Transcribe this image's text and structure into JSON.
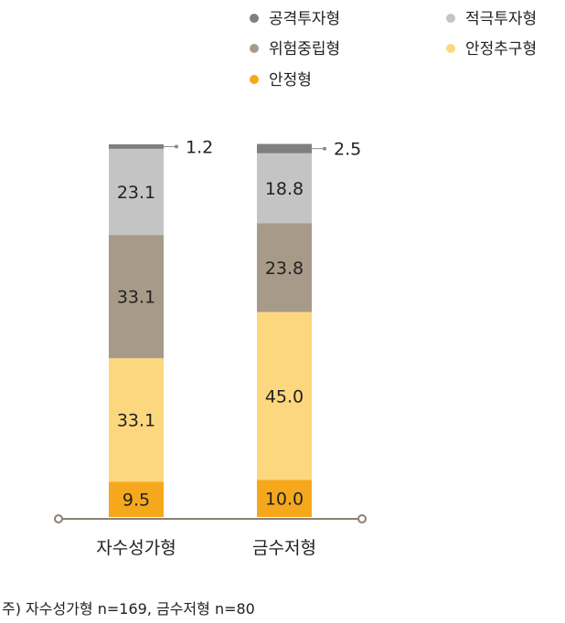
{
  "chart_data": {
    "type": "bar",
    "stacked": true,
    "categories": [
      "자수성가형",
      "금수저형"
    ],
    "series": [
      {
        "name": "안정형",
        "color": "#F5A81C",
        "values": [
          9.5,
          10.0
        ]
      },
      {
        "name": "안정추구형",
        "color": "#FDD77D",
        "values": [
          33.1,
          45.0
        ]
      },
      {
        "name": "위험중립형",
        "color": "#A89A89",
        "values": [
          33.1,
          23.8
        ]
      },
      {
        "name": "적극투자형",
        "color": "#C4C4C4",
        "values": [
          23.1,
          18.8
        ]
      },
      {
        "name": "공격투자형",
        "color": "#7F7F7F",
        "values": [
          1.2,
          2.5
        ]
      }
    ],
    "data_labels": [
      [
        "9.5",
        "33.1",
        "33.1",
        "23.1",
        "1.2"
      ],
      [
        "10.0",
        "45.0",
        "23.8",
        "18.8",
        "2.5"
      ]
    ],
    "legend_order": [
      "공격투자형",
      "적극투자형",
      "위험중립형",
      "안정추구형",
      "안정형"
    ],
    "legend_position": "top",
    "ylim": [
      0,
      100
    ],
    "title": "",
    "xlabel": "",
    "ylabel": ""
  },
  "note": "주) 자수성가형 n=169, 금수저형 n=80"
}
